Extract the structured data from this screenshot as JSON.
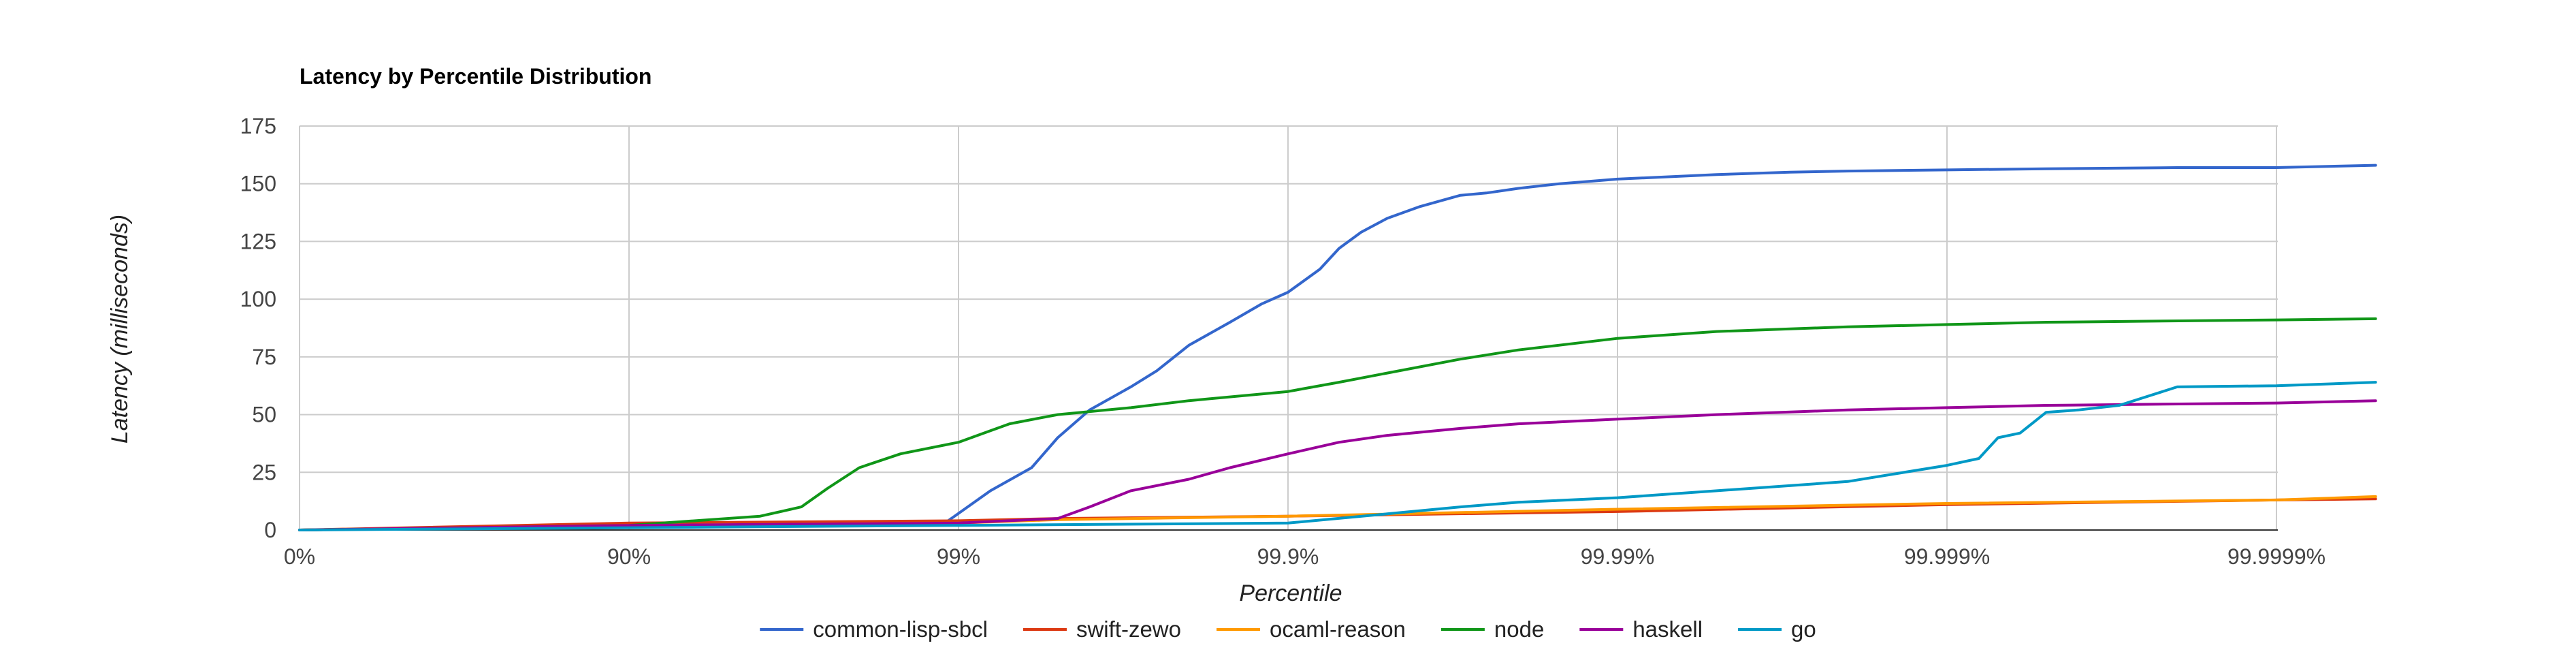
{
  "chart_data": {
    "type": "line",
    "title": "Latency by Percentile Distribution",
    "xlabel": "Percentile",
    "ylabel": "Latency (milliseconds)",
    "ylim": [
      0,
      175
    ],
    "yticks": [
      0,
      25,
      50,
      75,
      100,
      125,
      150,
      175
    ],
    "x_scale": "log",
    "x_unit": "percentile",
    "xlim": [
      0,
      99.99995
    ],
    "xtick_values": [
      0,
      90,
      99,
      99.9,
      99.99,
      99.999,
      99.9999
    ],
    "xtick_labels": [
      "0%",
      "90%",
      "99%",
      "99.9%",
      "99.99%",
      "99.999%",
      "99.9999%"
    ],
    "grid": true,
    "legend_position": "bottom",
    "series": [
      {
        "name": "common-lisp-sbcl",
        "color": "#3366cc",
        "x": [
          0,
          90,
          98.9,
          99.2,
          99.4,
          99.5,
          99.6,
          99.7,
          99.75,
          99.8,
          99.85,
          99.88,
          99.9,
          99.92,
          99.93,
          99.94,
          99.95,
          99.96,
          99.97,
          99.975,
          99.98,
          99.985,
          99.99,
          99.993,
          99.995,
          99.997,
          99.998,
          99.999,
          99.9995,
          99.9998,
          99.9999,
          99.99995
        ],
        "y": [
          0,
          2,
          3,
          17,
          27,
          40,
          52,
          62,
          69,
          80,
          90,
          98,
          103,
          113,
          122,
          129,
          135,
          140,
          145,
          146,
          148,
          150,
          152,
          153,
          154,
          155,
          155.5,
          156,
          156.5,
          157,
          157,
          158
        ]
      },
      {
        "name": "swift-zewo",
        "color": "#dc3912",
        "x": [
          0,
          90,
          99,
          99.5,
          99.9,
          99.99,
          99.999,
          99.9999,
          99.99995
        ],
        "y": [
          0,
          3,
          4,
          5,
          6,
          8,
          11,
          13,
          13.5
        ]
      },
      {
        "name": "ocaml-reason",
        "color": "#ff9900",
        "x": [
          0,
          90,
          99,
          99.5,
          99.9,
          99.99,
          99.999,
          99.9999,
          99.99995
        ],
        "y": [
          0,
          2,
          3,
          4.5,
          6,
          9,
          11.5,
          13,
          14.5
        ]
      },
      {
        "name": "node",
        "color": "#109618",
        "x": [
          0,
          90,
          96,
          97,
          97.5,
          98,
          98.5,
          99,
          99.3,
          99.5,
          99.7,
          99.8,
          99.9,
          99.93,
          99.95,
          99.97,
          99.98,
          99.99,
          99.995,
          99.998,
          99.999,
          99.9995,
          99.9999,
          99.99995
        ],
        "y": [
          0,
          2,
          6,
          10,
          18,
          27,
          33,
          38,
          46,
          50,
          53,
          56,
          60,
          64,
          68,
          74,
          78,
          83,
          86,
          88,
          89,
          90,
          91,
          91.5
        ]
      },
      {
        "name": "haskell",
        "color": "#990099",
        "x": [
          0,
          90,
          99,
          99.5,
          99.6,
          99.7,
          99.8,
          99.85,
          99.9,
          99.93,
          99.95,
          99.97,
          99.98,
          99.99,
          99.995,
          99.998,
          99.999,
          99.9995,
          99.9999,
          99.99995
        ],
        "y": [
          0,
          2,
          3,
          5,
          10,
          17,
          22,
          27,
          33,
          38,
          41,
          44,
          46,
          48,
          50,
          52,
          53,
          54,
          55,
          56
        ]
      },
      {
        "name": "go",
        "color": "#0099c6",
        "x": [
          0,
          90,
          99,
          99.9,
          99.95,
          99.97,
          99.98,
          99.99,
          99.995,
          99.998,
          99.999,
          99.9992,
          99.9993,
          99.9994,
          99.9995,
          99.9996,
          99.9997,
          99.9998,
          99.9999,
          99.99995
        ],
        "y": [
          0,
          1,
          2,
          3,
          7,
          10,
          12,
          14,
          17,
          21,
          28,
          31,
          40,
          42,
          51,
          52,
          54,
          62,
          62.5,
          64
        ]
      }
    ]
  }
}
